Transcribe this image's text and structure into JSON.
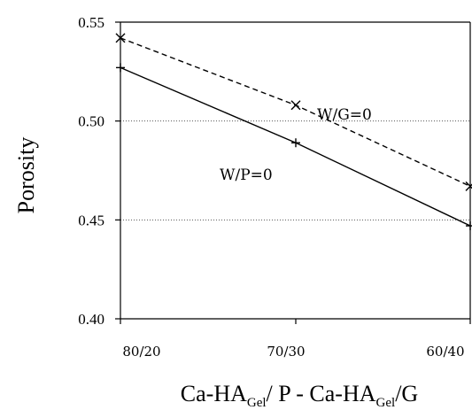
{
  "chart_data": {
    "type": "line",
    "categories": [
      "80/20",
      "70/30",
      "60/40"
    ],
    "series": [
      {
        "name": "W/G=0",
        "values": [
          0.542,
          0.508,
          0.467
        ],
        "style": "dashed",
        "marker": "x",
        "color": "#000000"
      },
      {
        "name": "W/P=0",
        "values": [
          0.527,
          0.489,
          0.447
        ],
        "style": "solid",
        "marker": "+",
        "color": "#000000"
      }
    ],
    "yticks": [
      "0.40",
      "0.45",
      "0.50",
      "0.55"
    ],
    "ylim": [
      0.4,
      0.55
    ],
    "ylabel": "Porosity",
    "xlabel": {
      "parts": [
        "Ca-HA",
        "Gel",
        "/ P - Ca-HA",
        "Gel",
        "/G"
      ]
    },
    "grid": "horizontal dotted at 0.45 and 0.50"
  }
}
